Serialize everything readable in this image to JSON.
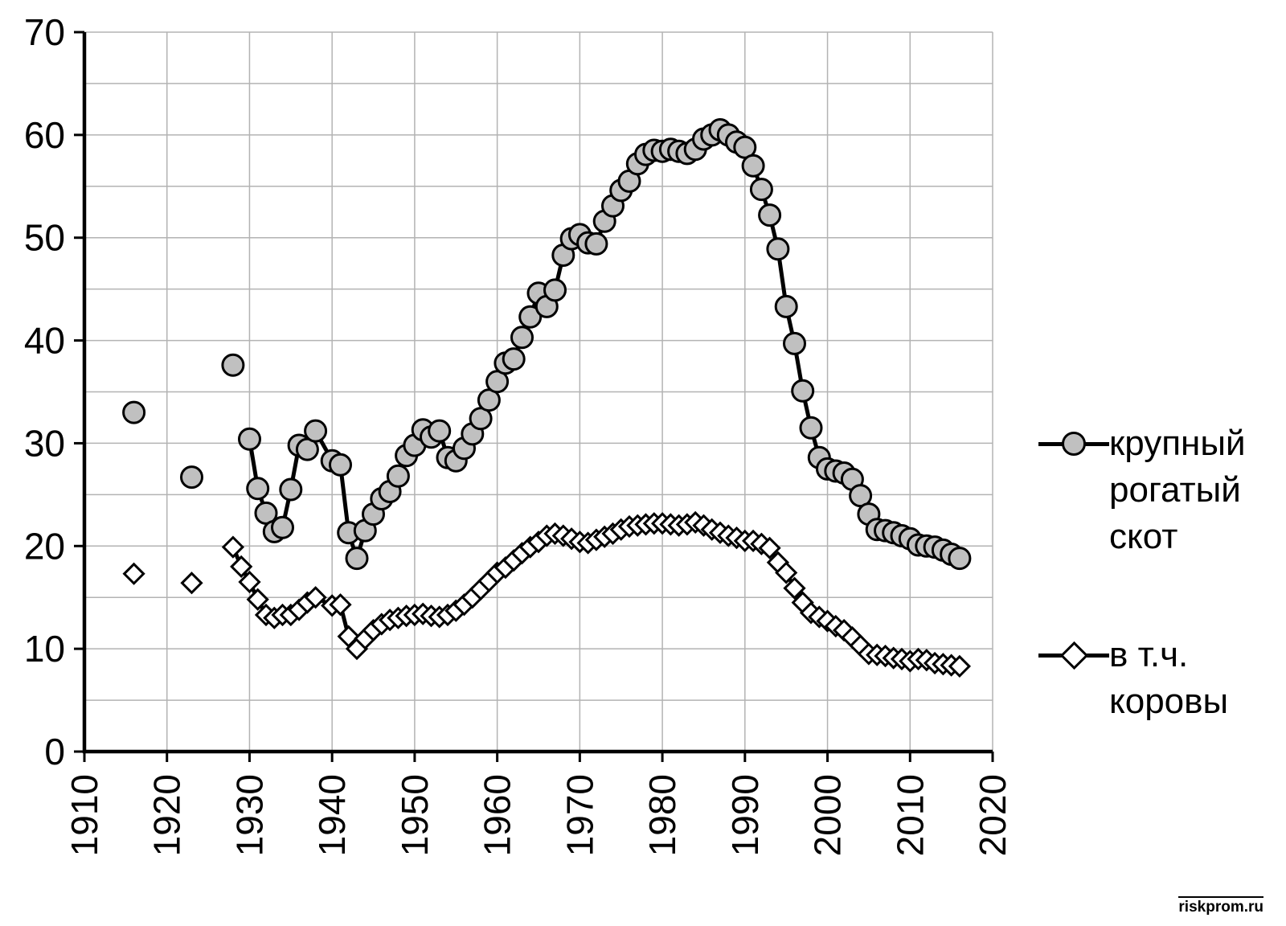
{
  "legend": {
    "cattle": {
      "lines": [
        "крупный",
        "рогатый",
        "скот"
      ]
    },
    "cows": {
      "lines": [
        "в т.ч.",
        "коровы"
      ]
    }
  },
  "watermark": "riskprom.ru",
  "chart_data": {
    "type": "line",
    "title": "",
    "xlabel": "",
    "ylabel": "",
    "x_range": [
      1910,
      2020
    ],
    "y_range": [
      0,
      70
    ],
    "x_ticks": [
      1910,
      1920,
      1930,
      1940,
      1950,
      1960,
      1970,
      1980,
      1990,
      2000,
      2010,
      2020
    ],
    "y_ticks": [
      0,
      10,
      20,
      30,
      40,
      50,
      60,
      70
    ],
    "grid": {
      "x_step": 10,
      "y_step": 5,
      "color": "#b3b3b3"
    },
    "legend_position": "right",
    "colors": {
      "line": "#000000",
      "circle_fill": "#c0c0c0",
      "diamond_fill": "#ffffff",
      "axis": "#000000"
    },
    "series": [
      {
        "name": "крупный рогатый скот",
        "marker": "circle",
        "isolated_points": [
          [
            1916,
            33.0
          ],
          [
            1923,
            26.7
          ],
          [
            1928,
            37.6
          ]
        ],
        "line_points": [
          [
            1930,
            30.4
          ],
          [
            1931,
            25.6
          ],
          [
            1932,
            23.2
          ],
          [
            1933,
            21.4
          ],
          [
            1934,
            21.8
          ],
          [
            1935,
            25.5
          ],
          [
            1936,
            29.8
          ],
          [
            1937,
            29.4
          ],
          [
            1938,
            31.2
          ],
          [
            1940,
            28.3
          ],
          [
            1941,
            27.9
          ],
          [
            1942,
            21.3
          ],
          [
            1943,
            18.8
          ],
          [
            1944,
            21.5
          ],
          [
            1945,
            23.1
          ],
          [
            1946,
            24.6
          ],
          [
            1947,
            25.3
          ],
          [
            1948,
            26.8
          ],
          [
            1949,
            28.8
          ],
          [
            1950,
            29.8
          ],
          [
            1951,
            31.3
          ],
          [
            1952,
            30.6
          ],
          [
            1953,
            31.2
          ],
          [
            1954,
            28.6
          ],
          [
            1955,
            28.3
          ],
          [
            1956,
            29.5
          ],
          [
            1957,
            30.9
          ],
          [
            1958,
            32.4
          ],
          [
            1959,
            34.2
          ],
          [
            1960,
            36.0
          ],
          [
            1961,
            37.8
          ],
          [
            1962,
            38.2
          ],
          [
            1963,
            40.3
          ],
          [
            1964,
            42.3
          ],
          [
            1965,
            44.6
          ],
          [
            1966,
            43.3
          ],
          [
            1967,
            44.9
          ],
          [
            1968,
            48.3
          ],
          [
            1969,
            49.9
          ],
          [
            1970,
            50.3
          ],
          [
            1971,
            49.5
          ],
          [
            1972,
            49.4
          ],
          [
            1973,
            51.6
          ],
          [
            1974,
            53.1
          ],
          [
            1975,
            54.6
          ],
          [
            1976,
            55.5
          ],
          [
            1977,
            57.2
          ],
          [
            1978,
            58.1
          ],
          [
            1979,
            58.5
          ],
          [
            1980,
            58.4
          ],
          [
            1981,
            58.6
          ],
          [
            1982,
            58.4
          ],
          [
            1983,
            58.2
          ],
          [
            1984,
            58.6
          ],
          [
            1985,
            59.6
          ],
          [
            1986,
            60.0
          ],
          [
            1987,
            60.5
          ],
          [
            1988,
            60.0
          ],
          [
            1989,
            59.3
          ],
          [
            1990,
            58.8
          ],
          [
            1991,
            57.0
          ],
          [
            1992,
            54.7
          ],
          [
            1993,
            52.2
          ],
          [
            1994,
            48.9
          ],
          [
            1995,
            43.3
          ],
          [
            1996,
            39.7
          ],
          [
            1997,
            35.1
          ],
          [
            1998,
            31.5
          ],
          [
            1999,
            28.6
          ],
          [
            2000,
            27.5
          ],
          [
            2001,
            27.3
          ],
          [
            2002,
            27.1
          ],
          [
            2003,
            26.5
          ],
          [
            2004,
            24.9
          ],
          [
            2005,
            23.1
          ],
          [
            2006,
            21.6
          ],
          [
            2007,
            21.5
          ],
          [
            2008,
            21.3
          ],
          [
            2009,
            21.0
          ],
          [
            2010,
            20.7
          ],
          [
            2011,
            20.1
          ],
          [
            2012,
            20.0
          ],
          [
            2013,
            19.9
          ],
          [
            2014,
            19.6
          ],
          [
            2015,
            19.2
          ],
          [
            2016,
            18.8
          ]
        ]
      },
      {
        "name": "в т.ч. коровы",
        "marker": "diamond",
        "isolated_points": [
          [
            1916,
            17.3
          ],
          [
            1923,
            16.4
          ]
        ],
        "line_points": [
          [
            1928,
            19.9
          ],
          [
            1929,
            18.0
          ],
          [
            1930,
            16.5
          ],
          [
            1931,
            14.8
          ],
          [
            1932,
            13.3
          ],
          [
            1933,
            13.0
          ],
          [
            1934,
            13.3
          ],
          [
            1935,
            13.3
          ],
          [
            1936,
            13.8
          ],
          [
            1937,
            14.5
          ],
          [
            1938,
            15.0
          ],
          [
            1940,
            14.2
          ],
          [
            1941,
            14.3
          ],
          [
            1942,
            11.2
          ],
          [
            1943,
            10.0
          ],
          [
            1944,
            11.0
          ],
          [
            1945,
            11.8
          ],
          [
            1946,
            12.4
          ],
          [
            1947,
            12.8
          ],
          [
            1948,
            13.0
          ],
          [
            1949,
            13.2
          ],
          [
            1950,
            13.3
          ],
          [
            1951,
            13.4
          ],
          [
            1952,
            13.2
          ],
          [
            1953,
            13.1
          ],
          [
            1954,
            13.3
          ],
          [
            1955,
            13.7
          ],
          [
            1956,
            14.3
          ],
          [
            1957,
            15.0
          ],
          [
            1958,
            15.8
          ],
          [
            1959,
            16.6
          ],
          [
            1960,
            17.4
          ],
          [
            1961,
            17.9
          ],
          [
            1962,
            18.6
          ],
          [
            1963,
            19.3
          ],
          [
            1964,
            19.9
          ],
          [
            1965,
            20.4
          ],
          [
            1966,
            21.0
          ],
          [
            1967,
            21.2
          ],
          [
            1968,
            21.0
          ],
          [
            1969,
            20.7
          ],
          [
            1970,
            20.4
          ],
          [
            1971,
            20.3
          ],
          [
            1972,
            20.6
          ],
          [
            1973,
            20.9
          ],
          [
            1974,
            21.2
          ],
          [
            1975,
            21.6
          ],
          [
            1976,
            21.9
          ],
          [
            1977,
            22.0
          ],
          [
            1978,
            22.1
          ],
          [
            1979,
            22.2
          ],
          [
            1980,
            22.2
          ],
          [
            1981,
            22.1
          ],
          [
            1982,
            22.0
          ],
          [
            1983,
            22.1
          ],
          [
            1984,
            22.3
          ],
          [
            1985,
            22.0
          ],
          [
            1986,
            21.6
          ],
          [
            1987,
            21.3
          ],
          [
            1988,
            21.0
          ],
          [
            1989,
            20.8
          ],
          [
            1990,
            20.5
          ],
          [
            1991,
            20.5
          ],
          [
            1992,
            20.2
          ],
          [
            1993,
            19.8
          ],
          [
            1994,
            18.4
          ],
          [
            1995,
            17.4
          ],
          [
            1996,
            15.9
          ],
          [
            1997,
            14.5
          ],
          [
            1998,
            13.5
          ],
          [
            1999,
            13.1
          ],
          [
            2000,
            12.7
          ],
          [
            2001,
            12.2
          ],
          [
            2002,
            11.8
          ],
          [
            2003,
            11.1
          ],
          [
            2004,
            10.3
          ],
          [
            2005,
            9.5
          ],
          [
            2006,
            9.4
          ],
          [
            2007,
            9.3
          ],
          [
            2008,
            9.1
          ],
          [
            2009,
            9.0
          ],
          [
            2010,
            8.8
          ],
          [
            2011,
            9.0
          ],
          [
            2012,
            8.9
          ],
          [
            2013,
            8.6
          ],
          [
            2014,
            8.5
          ],
          [
            2015,
            8.4
          ],
          [
            2016,
            8.3
          ]
        ]
      }
    ]
  }
}
